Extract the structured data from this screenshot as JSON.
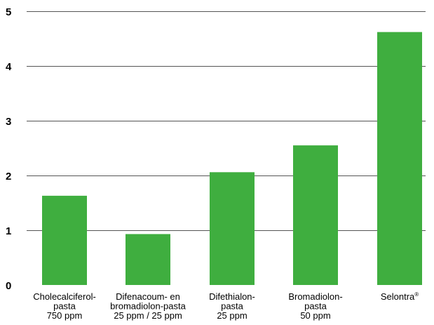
{
  "chart_data": {
    "type": "bar",
    "categories": [
      [
        "Cholecalciferol-",
        "pasta",
        "750 ppm"
      ],
      [
        "Difenacoum- en",
        "bromadiolon-pasta",
        "25 ppm / 25 ppm"
      ],
      [
        "Difethialon-",
        "pasta",
        "25 ppm"
      ],
      [
        "Bromadiolon-",
        "pasta",
        "50 ppm"
      ],
      [
        "Selontra®"
      ]
    ],
    "values": [
      1.63,
      0.93,
      2.06,
      2.55,
      4.62
    ],
    "yticks": [
      "0",
      "1",
      "2",
      "3",
      "4",
      "5"
    ],
    "ylim": [
      0,
      5
    ],
    "grid": true,
    "colors": {
      "bar": "#3fae3f",
      "grid": "#555555"
    }
  }
}
